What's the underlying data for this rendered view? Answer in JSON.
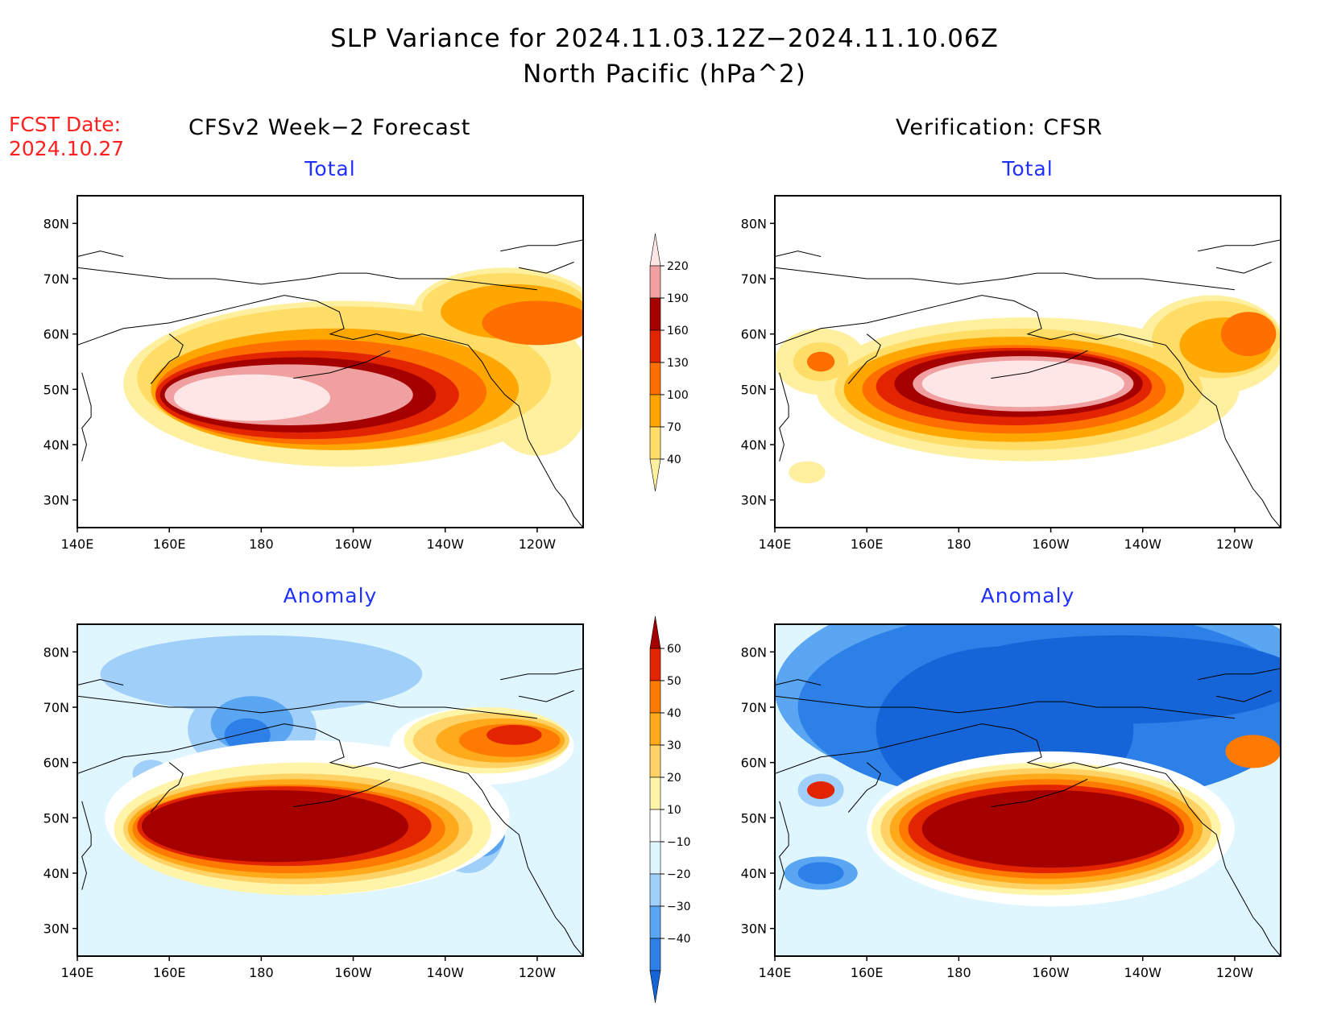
{
  "header": {
    "title_line1": "SLP Variance for 2024.11.03.12Z−2024.11.10.06Z",
    "title_line2": "North Pacific (hPa^2)",
    "fcst_label": "FCST Date:",
    "fcst_date": "2024.10.27"
  },
  "columns": {
    "left": "CFSv2 Week−2 Forecast",
    "right": "Verification: CFSR"
  },
  "panels": {
    "ft": {
      "title": "Total"
    },
    "vt": {
      "title": "Total"
    },
    "fa": {
      "title": "Anomaly"
    },
    "va": {
      "title": "Anomaly"
    }
  },
  "axes": {
    "lat_labels": [
      "80N",
      "70N",
      "60N",
      "50N",
      "40N",
      "30N"
    ],
    "lat_values": [
      80,
      70,
      60,
      50,
      40,
      30
    ],
    "lon_labels": [
      "140E",
      "160E",
      "180",
      "160W",
      "140W",
      "120W"
    ],
    "lon_values": [
      140,
      160,
      180,
      200,
      220,
      240
    ],
    "lon_range": [
      140,
      250
    ],
    "lat_range": [
      25,
      85
    ]
  },
  "colorbars": {
    "total": {
      "levels": [
        "40",
        "70",
        "100",
        "130",
        "160",
        "190",
        "220"
      ],
      "colors": [
        "#fff0a0",
        "#ffdd66",
        "#ffa700",
        "#ff6f00",
        "#e32400",
        "#a50000",
        "#f0a0a0",
        "#ffe6e6"
      ]
    },
    "anomaly": {
      "levels": [
        "−40",
        "−30",
        "−20",
        "−10",
        "10",
        "20",
        "30",
        "40",
        "50",
        "60"
      ],
      "colors": [
        "#1565d8",
        "#2c80e8",
        "#5aa6f2",
        "#a0d0fa",
        "#e0f6ff",
        "#ffffff",
        "#fff4a8",
        "#ffd266",
        "#ffaa1a",
        "#ff7a00",
        "#e32400",
        "#a50000"
      ]
    }
  }
}
